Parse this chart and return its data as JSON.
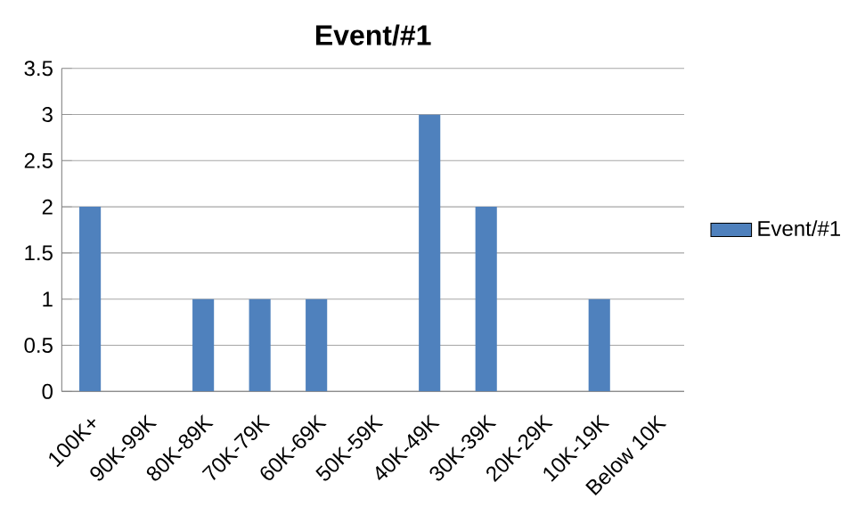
{
  "chart_data": {
    "type": "bar",
    "title": "Event/#1",
    "categories": [
      "100K+",
      "90K-99K",
      "80K-89K",
      "70K-79K",
      "60K-69K",
      "50K-59K",
      "40K-49K",
      "30K-39K",
      "20K-29K",
      "10K-19K",
      "Below 10K"
    ],
    "series": [
      {
        "name": "Event/#1",
        "color": "#4f81bd",
        "values": [
          2,
          0,
          1,
          1,
          1,
          0,
          3,
          2,
          0,
          1,
          0
        ]
      }
    ],
    "ylim": [
      0,
      3.5
    ],
    "yticks": [
      0,
      0.5,
      1,
      1.5,
      2,
      2.5,
      3,
      3.5
    ],
    "grid": "y",
    "legend": "right"
  }
}
